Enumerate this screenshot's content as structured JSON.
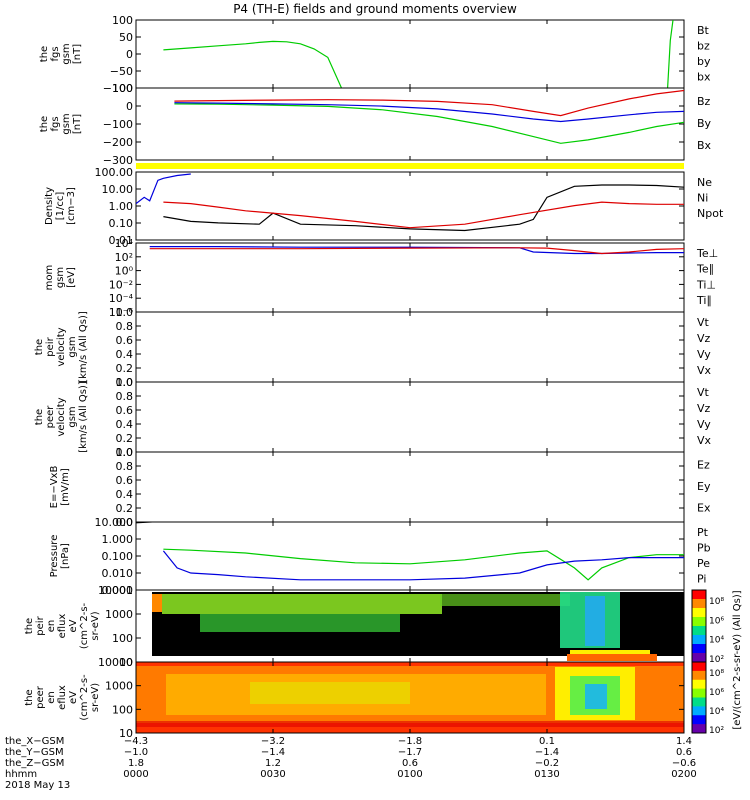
{
  "title": "P4 (TH-E) fields and ground moments overview",
  "colors": {
    "black": "#000000",
    "red": "#dd0000",
    "green": "#00cc00",
    "blue": "#0000dd",
    "yellow": "#ffff00"
  },
  "chart_data": [
    {
      "id": "fgs-gsm-top",
      "type": "line",
      "ylabel": [
        "the",
        "fgs",
        "gsm",
        "[nT]"
      ],
      "ylim": [
        -100,
        100
      ],
      "yticks": [
        "100",
        "50",
        "0",
        "−50",
        "−100"
      ],
      "legend": [
        {
          "name": "Bt",
          "color": "black"
        },
        {
          "name": "bz",
          "color": "red"
        },
        {
          "name": "by",
          "color": "green"
        },
        {
          "name": "bx",
          "color": "blue"
        }
      ],
      "series": [
        {
          "name": "by",
          "color": "green",
          "x": [
            0.1,
            0.2,
            0.3,
            0.4,
            0.45,
            0.5,
            0.55,
            0.6,
            0.65,
            0.7,
            0.75
          ],
          "values": [
            12,
            18,
            24,
            30,
            34,
            37,
            36,
            30,
            15,
            -10,
            -100
          ]
        },
        {
          "name": "by",
          "color": "green",
          "x": [
            1.94,
            1.95,
            1.96
          ],
          "values": [
            -100,
            40,
            100
          ]
        }
      ]
    },
    {
      "id": "fgs-gsm-bottom",
      "type": "line",
      "ylabel": [
        "the",
        "fgs",
        "gsm",
        "[nT]"
      ],
      "ylim": [
        -340,
        90
      ],
      "yticks": [
        "100",
        "0",
        "−100",
        "−200",
        "−300"
      ],
      "legend": [
        {
          "name": "Bz",
          "color": "red"
        },
        {
          "name": "By",
          "color": "green"
        },
        {
          "name": "Bx",
          "color": "blue"
        }
      ],
      "series": [
        {
          "name": "Bz",
          "color": "red",
          "x": [
            0.14,
            0.3,
            0.5,
            0.7,
            0.9,
            1.1,
            1.3,
            1.45,
            1.55,
            1.65,
            1.8,
            1.9,
            2.0
          ],
          "values": [
            12,
            15,
            18,
            20,
            18,
            10,
            -10,
            -50,
            -75,
            -30,
            25,
            55,
            75
          ]
        },
        {
          "name": "By",
          "color": "green",
          "x": [
            0.14,
            0.3,
            0.5,
            0.7,
            0.9,
            1.1,
            1.3,
            1.45,
            1.55,
            1.65,
            1.8,
            1.9,
            2.0
          ],
          "values": [
            -5,
            -7,
            -12,
            -20,
            -40,
            -80,
            -140,
            -200,
            -240,
            -220,
            -175,
            -140,
            -115
          ]
        },
        {
          "name": "Bx",
          "color": "blue",
          "x": [
            0.14,
            0.3,
            0.5,
            0.7,
            0.9,
            1.1,
            1.3,
            1.45,
            1.55,
            1.65,
            1.8,
            1.9,
            2.0
          ],
          "values": [
            2,
            0,
            -5,
            -10,
            -18,
            -35,
            -65,
            -95,
            -110,
            -95,
            -70,
            -55,
            -50
          ]
        }
      ]
    },
    {
      "id": "density",
      "type": "line",
      "ylabel": [
        "Density",
        "[1/cc]",
        "[cm−3]"
      ],
      "ylog": true,
      "ylim": [
        0.01,
        200
      ],
      "yticks": [
        "100.00",
        "10.00",
        "1.00",
        "0.10",
        "0.01"
      ],
      "legend": [
        {
          "name": "Ne",
          "color": "red"
        },
        {
          "name": "Ni",
          "color": "black"
        },
        {
          "name": "Npot",
          "color": "blue"
        },
        {
          "name": "",
          "color": "black"
        }
      ],
      "series": [
        {
          "name": "Ni",
          "color": "black",
          "x": [
            0.1,
            0.2,
            0.3,
            0.45,
            0.5,
            0.6,
            0.8,
            1.0,
            1.2,
            1.4,
            1.45,
            1.5,
            1.6,
            1.7,
            1.8,
            1.9,
            2.0
          ],
          "values": [
            0.3,
            0.15,
            0.12,
            0.1,
            0.5,
            0.1,
            0.08,
            0.05,
            0.04,
            0.1,
            0.2,
            5,
            25,
            30,
            30,
            28,
            22
          ]
        },
        {
          "name": "Ne",
          "color": "red",
          "x": [
            0.1,
            0.2,
            0.3,
            0.4,
            0.6,
            0.8,
            1.0,
            1.2,
            1.4,
            1.6,
            1.7,
            1.8,
            1.9,
            2.0
          ],
          "values": [
            2.5,
            2.0,
            1.2,
            0.7,
            0.35,
            0.15,
            0.06,
            0.1,
            0.4,
            1.5,
            2.5,
            2.0,
            1.8,
            1.8
          ]
        },
        {
          "name": "Npot",
          "color": "blue",
          "x": [
            0.0,
            0.03,
            0.05,
            0.08,
            0.1,
            0.15,
            0.2
          ],
          "values": [
            2,
            5,
            3,
            60,
            80,
            120,
            150
          ]
        }
      ]
    },
    {
      "id": "temperature",
      "type": "line",
      "ylabel": [
        "mom",
        "gsm",
        "[eV]"
      ],
      "ylog": true,
      "ylim": [
        1e-06,
        10000.0
      ],
      "yticks": [
        "10⁴",
        "10²",
        "10⁰",
        "10⁻²",
        "10⁻⁴",
        "10⁻⁶"
      ],
      "legend": [
        {
          "name": "Te⊥",
          "color": "red"
        },
        {
          "name": "Te∥",
          "color": "black"
        },
        {
          "name": "Ti⊥",
          "color": "blue"
        },
        {
          "name": "Ti∥",
          "color": "green"
        }
      ],
      "series": [
        {
          "name": "Ti⊥",
          "color": "blue",
          "x": [
            0.05,
            0.3,
            0.6,
            1.0,
            1.4,
            1.45,
            1.6,
            1.7,
            1.9,
            2.0
          ],
          "values": [
            3000,
            3000,
            2500,
            2500,
            2000,
            500,
            300,
            300,
            400,
            400
          ]
        },
        {
          "name": "Te⊥",
          "color": "red",
          "x": [
            0.05,
            0.3,
            0.6,
            1.0,
            1.4,
            1.5,
            1.6,
            1.7,
            1.8,
            1.9,
            2.0
          ],
          "values": [
            1500,
            1500,
            1500,
            1800,
            2000,
            1800,
            800,
            300,
            500,
            1200,
            1500
          ]
        }
      ]
    },
    {
      "id": "peir-velocity",
      "type": "line",
      "ylabel": [
        "the",
        "peir",
        "velocity",
        "gsm",
        "[km/s (All Qs)]"
      ],
      "ylim": [
        0.0,
        1.0
      ],
      "yticks": [
        "1.0",
        "0.8",
        "0.6",
        "0.4",
        "0.2",
        "0.0"
      ],
      "legend": [
        {
          "name": "Vt",
          "color": "black"
        },
        {
          "name": "Vz",
          "color": "red"
        },
        {
          "name": "Vy",
          "color": "green"
        },
        {
          "name": "Vx",
          "color": "blue"
        }
      ],
      "series": []
    },
    {
      "id": "peer-velocity",
      "type": "line",
      "ylabel": [
        "the",
        "peer",
        "velocity",
        "gsm",
        "[km/s (All Qs)]"
      ],
      "ylim": [
        0.0,
        1.0
      ],
      "yticks": [
        "1.0",
        "0.8",
        "0.6",
        "0.4",
        "0.2",
        "0.0"
      ],
      "legend": [
        {
          "name": "Vt",
          "color": "black"
        },
        {
          "name": "Vz",
          "color": "red"
        },
        {
          "name": "Vy",
          "color": "green"
        },
        {
          "name": "Vx",
          "color": "blue"
        }
      ],
      "series": []
    },
    {
      "id": "efield",
      "type": "line",
      "ylabel": [
        "E=−VxB",
        "[mV/m]"
      ],
      "ylim": [
        0.0,
        1.0
      ],
      "yticks": [
        "1.0",
        "0.8",
        "0.6",
        "0.4",
        "0.2",
        "0.0"
      ],
      "legend": [
        {
          "name": "Ez",
          "color": "red"
        },
        {
          "name": "Ey",
          "color": "green"
        },
        {
          "name": "Ex",
          "color": "blue"
        }
      ],
      "series": []
    },
    {
      "id": "pressure",
      "type": "line",
      "ylabel": [
        "Pressure",
        "[nPa]"
      ],
      "ylog": true,
      "ylim": [
        0.001,
        10
      ],
      "yticks": [
        "10.000",
        "1.000",
        "0.100",
        "0.010",
        "0.001"
      ],
      "legend": [
        {
          "name": "Pt",
          "color": "black"
        },
        {
          "name": "Pb",
          "color": "red"
        },
        {
          "name": "Pe",
          "color": "green"
        },
        {
          "name": "Pi",
          "color": "blue"
        }
      ],
      "series": [
        {
          "name": "Pt",
          "color": "black",
          "x": [
            0.0,
            0.1,
            0.2
          ],
          "values": [
            9,
            11,
            12
          ]
        },
        {
          "name": "Pe",
          "color": "green",
          "x": [
            0.1,
            0.2,
            0.4,
            0.6,
            0.8,
            1.0,
            1.2,
            1.4,
            1.5,
            1.6,
            1.65,
            1.7,
            1.8,
            1.9,
            2.0
          ],
          "values": [
            0.25,
            0.22,
            0.15,
            0.07,
            0.04,
            0.035,
            0.06,
            0.15,
            0.2,
            0.02,
            0.004,
            0.02,
            0.08,
            0.12,
            0.12
          ]
        },
        {
          "name": "Pi",
          "color": "blue",
          "x": [
            0.1,
            0.15,
            0.2,
            0.3,
            0.4,
            0.6,
            0.8,
            1.0,
            1.2,
            1.4,
            1.5,
            1.6,
            1.7,
            1.8,
            1.9,
            2.0
          ],
          "values": [
            0.2,
            0.02,
            0.01,
            0.008,
            0.006,
            0.004,
            0.004,
            0.004,
            0.005,
            0.01,
            0.03,
            0.05,
            0.06,
            0.08,
            0.08,
            0.08
          ]
        }
      ]
    },
    {
      "id": "peir-eflux",
      "type": "heatmap",
      "ylabel": [
        "the",
        "peir",
        "en",
        "eflux",
        "eV",
        "(cm^2-s-",
        "sr-eV)"
      ],
      "ylog": true,
      "ylim": [
        5,
        30000
      ],
      "yticks": [
        "10000",
        "1000",
        "100",
        "10"
      ],
      "colorbar": {
        "ticks": [
          "10⁸",
          "10⁶",
          "10⁴",
          "10²"
        ]
      }
    },
    {
      "id": "peer-eflux",
      "type": "heatmap",
      "ylabel": [
        "the",
        "peer",
        "en",
        "eflux",
        "eV",
        "(cm^2-s-",
        "sr-eV)"
      ],
      "ylog": true,
      "ylim": [
        5,
        30000
      ],
      "yticks": [
        "10000",
        "1000",
        "100",
        "10"
      ],
      "colorbar": {
        "ticks": [
          "10⁸",
          "10⁶",
          "10⁴",
          "10²"
        ]
      }
    }
  ],
  "colorbar_label": "[eV/(cm^2-s-sr-eV) (All Qs)]",
  "xaxis": {
    "row_labels": [
      "the_X−GSM",
      "the_Y−GSM",
      "the_Z−GSM",
      "hhmm",
      "2018 May 13"
    ],
    "ticks": [
      {
        "x": 0.0,
        "X": "−4.3",
        "Y": "−1.0",
        "Z": "1.8",
        "hhmm": "0000"
      },
      {
        "x": 0.5,
        "X": "−3.2",
        "Y": "−1.4",
        "Z": "1.2",
        "hhmm": "0030"
      },
      {
        "x": 1.0,
        "X": "−1.8",
        "Y": "−1.7",
        "Z": "0.6",
        "hhmm": "0100"
      },
      {
        "x": 1.5,
        "X": "0.1",
        "Y": "−1.4",
        "Z": "−0.2",
        "hhmm": "0130"
      },
      {
        "x": 2.0,
        "X": "1.4",
        "Y": "0.6",
        "Z": "−0.6",
        "hhmm": "0200"
      }
    ]
  }
}
